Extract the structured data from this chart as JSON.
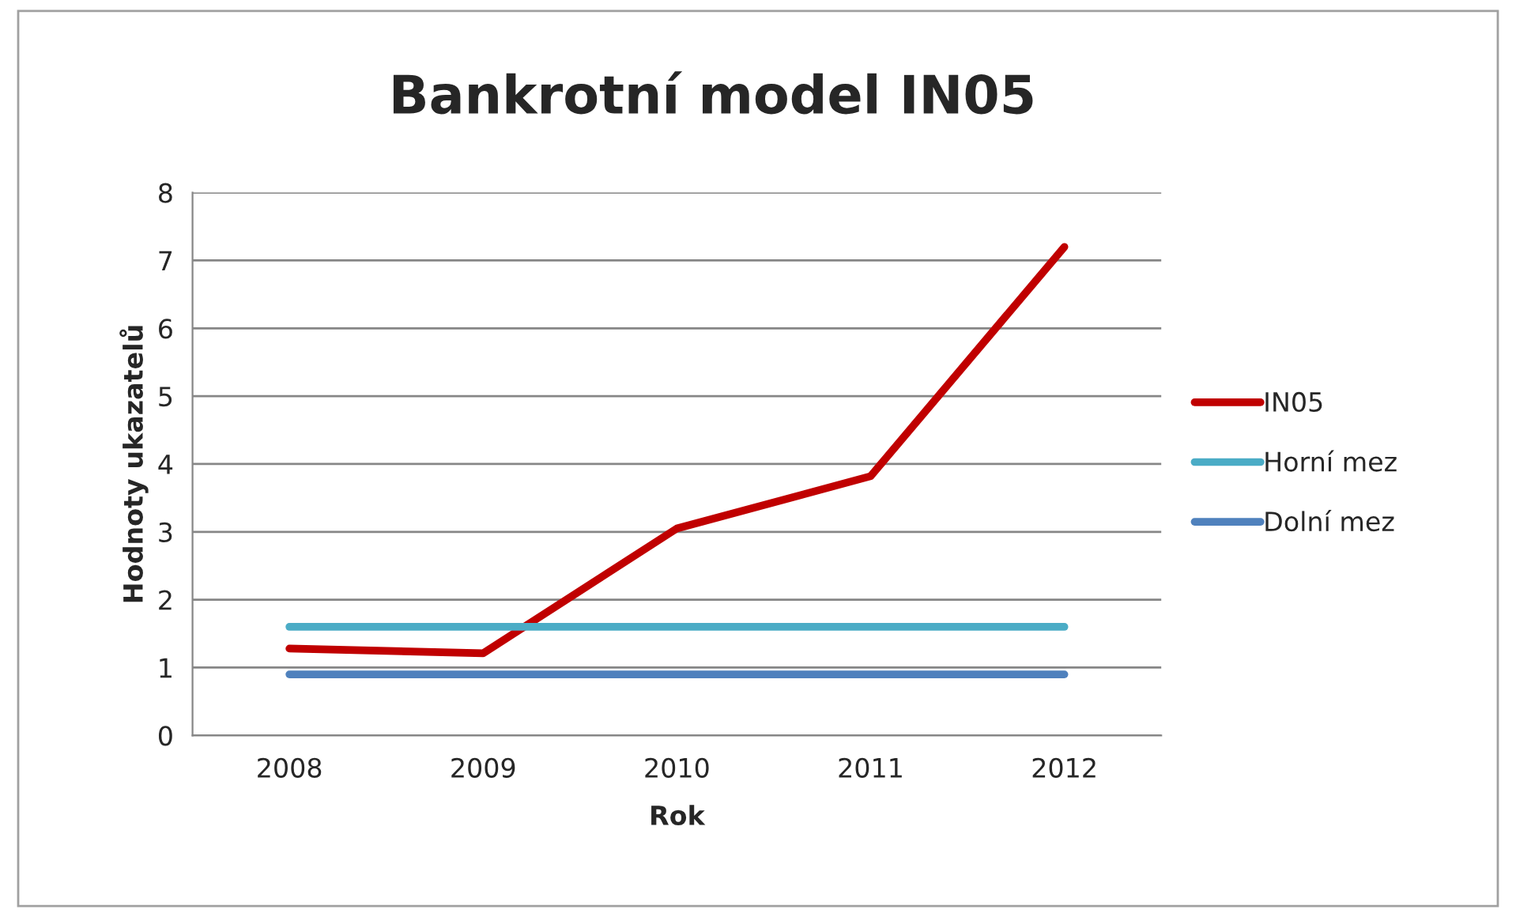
{
  "chart_data": {
    "type": "line",
    "title": "Bankrotní model IN05",
    "xlabel": "Rok",
    "ylabel": "Hodnoty ukazatelů",
    "categories": [
      "2008",
      "2009",
      "2010",
      "2011",
      "2012"
    ],
    "series": [
      {
        "name": "IN05",
        "color": "#c00000",
        "values": [
          1.28,
          1.21,
          3.05,
          3.82,
          7.2
        ]
      },
      {
        "name": "Horní mez",
        "color": "#4bacc6",
        "values": [
          1.6,
          1.6,
          1.6,
          1.6,
          1.6
        ]
      },
      {
        "name": "Dolní mez",
        "color": "#4f81bd",
        "values": [
          0.9,
          0.9,
          0.9,
          0.9,
          0.9
        ]
      }
    ],
    "ylim": [
      0,
      8
    ],
    "yticks": [
      0,
      1,
      2,
      3,
      4,
      5,
      6,
      7,
      8
    ],
    "grid": "y",
    "legend": "right",
    "marker": "none",
    "line_style": "solid"
  }
}
